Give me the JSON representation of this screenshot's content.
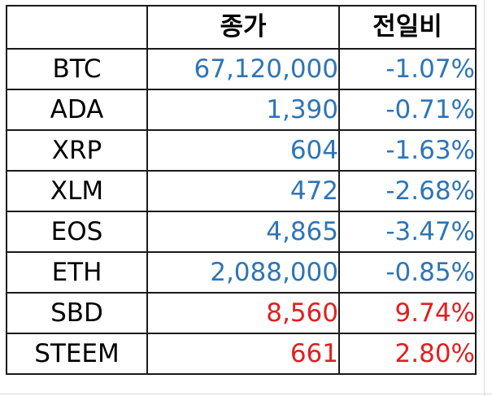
{
  "table": {
    "headers": [
      "",
      "종가",
      "전일비"
    ],
    "colors": {
      "down": "#2e75b6",
      "up": "#e02020",
      "text": "#000000"
    },
    "rows": [
      {
        "symbol": "BTC",
        "close": "67,120,000",
        "change": "-1.07%",
        "direction": "down"
      },
      {
        "symbol": "ADA",
        "close": "1,390",
        "change": "-0.71%",
        "direction": "down"
      },
      {
        "symbol": "XRP",
        "close": "604",
        "change": "-1.63%",
        "direction": "down"
      },
      {
        "symbol": "XLM",
        "close": "472",
        "change": "-2.68%",
        "direction": "down"
      },
      {
        "symbol": "EOS",
        "close": "4,865",
        "change": "-3.47%",
        "direction": "down"
      },
      {
        "symbol": "ETH",
        "close": "2,088,000",
        "change": "-0.85%",
        "direction": "down"
      },
      {
        "symbol": "SBD",
        "close": "8,560",
        "change": "9.74%",
        "direction": "up"
      },
      {
        "symbol": "STEEM",
        "close": "661",
        "change": "2.80%",
        "direction": "up"
      }
    ]
  }
}
